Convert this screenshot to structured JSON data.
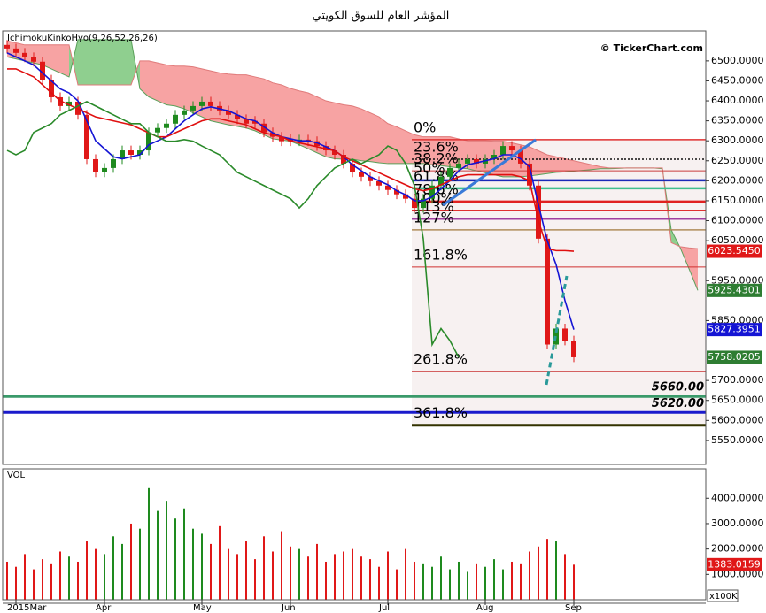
{
  "chart_data": [
    {
      "type": "candlestick",
      "title": "المؤشر العام للسوق الكويتي",
      "indicator": "IchimokuKinkoHyo(9,26,52,26,26)",
      "watermark": "© TickerChart.com",
      "categories": [
        null,
        "2015Mar",
        null,
        null,
        null,
        null,
        null,
        null,
        null,
        null,
        null,
        "Apr",
        null,
        null,
        null,
        null,
        null,
        null,
        null,
        null,
        null,
        null,
        "May",
        null,
        null,
        null,
        null,
        null,
        null,
        null,
        null,
        null,
        "Jun",
        null,
        null,
        null,
        null,
        null,
        null,
        null,
        null,
        null,
        null,
        "Jul",
        null,
        null,
        null,
        null,
        null,
        null,
        null,
        null,
        null,
        null,
        "Aug",
        null,
        null,
        null,
        null,
        null,
        null,
        null,
        null,
        null,
        "Sep",
        null,
        null,
        null,
        null,
        null,
        null,
        null,
        null,
        null,
        null,
        null,
        null,
        null,
        null
      ],
      "open": [
        6540,
        6531,
        6520,
        6509,
        6498,
        6453,
        6409,
        6387,
        6398,
        6365,
        6254,
        6221,
        6232,
        6254,
        6276,
        6265,
        6276,
        6321,
        6332,
        6343,
        6365,
        6376,
        6387,
        6398,
        6387,
        6376,
        6365,
        6354,
        6350,
        6343,
        6321,
        6310,
        6305,
        6299,
        6303,
        6299,
        6287,
        6276,
        6265,
        6243,
        6221,
        6210,
        6199,
        6188,
        6177,
        6166,
        6155,
        6132,
        6155,
        6188,
        6210,
        6232,
        6243,
        6254,
        6243,
        6254,
        6265,
        6287,
        6276,
        6243,
        6188,
        6055,
        5790,
        5830,
        5800,
        null,
        null,
        null,
        null,
        null,
        null,
        null,
        null,
        null,
        null,
        null,
        null,
        null,
        null
      ],
      "high": [
        6552,
        6543,
        6532,
        6521,
        6510,
        6465,
        6421,
        6410,
        6410,
        6377,
        6266,
        6244,
        6266,
        6288,
        6288,
        6288,
        6333,
        6344,
        6355,
        6377,
        6388,
        6399,
        6410,
        6410,
        6399,
        6388,
        6377,
        6366,
        6362,
        6355,
        6333,
        6322,
        6317,
        6315,
        6315,
        6311,
        6299,
        6288,
        6277,
        6255,
        6233,
        6222,
        6211,
        6200,
        6189,
        6178,
        6167,
        6167,
        6200,
        6222,
        6244,
        6255,
        6266,
        6266,
        6266,
        6277,
        6299,
        6299,
        6288,
        6255,
        6200,
        6067,
        5842,
        5842,
        5812,
        null,
        null,
        null,
        null,
        null,
        null,
        null,
        null,
        null,
        null,
        null,
        null,
        null,
        null
      ],
      "low": [
        6519,
        6508,
        6497,
        6486,
        6441,
        6397,
        6375,
        6375,
        6353,
        6242,
        6209,
        6209,
        6220,
        6242,
        6253,
        6253,
        6264,
        6309,
        6320,
        6331,
        6353,
        6364,
        6375,
        6375,
        6364,
        6353,
        6342,
        6331,
        6331,
        6309,
        6298,
        6287,
        6287,
        6287,
        6287,
        6275,
        6264,
        6253,
        6231,
        6209,
        6198,
        6187,
        6176,
        6165,
        6154,
        6143,
        6120,
        6120,
        6143,
        6176,
        6198,
        6220,
        6231,
        6231,
        6231,
        6242,
        6253,
        6264,
        6231,
        6176,
        6043,
        5778,
        5778,
        5788,
        5746,
        null,
        null,
        null,
        null,
        null,
        null,
        null,
        null,
        null,
        null,
        null,
        null,
        null,
        null
      ],
      "close": [
        6531,
        6520,
        6509,
        6498,
        6453,
        6409,
        6387,
        6398,
        6365,
        6254,
        6221,
        6232,
        6254,
        6276,
        6265,
        6276,
        6321,
        6332,
        6343,
        6365,
        6376,
        6387,
        6398,
        6387,
        6376,
        6365,
        6354,
        6343,
        6343,
        6321,
        6310,
        6299,
        6299,
        6303,
        6299,
        6287,
        6276,
        6265,
        6243,
        6221,
        6210,
        6199,
        6188,
        6177,
        6166,
        6155,
        6132,
        6155,
        6188,
        6210,
        6232,
        6243,
        6254,
        6243,
        6254,
        6265,
        6287,
        6276,
        6243,
        6188,
        6055,
        5790,
        5830,
        5800,
        5758.0205,
        null,
        null,
        null,
        null,
        null,
        null,
        null,
        null,
        null,
        null,
        null,
        null,
        null,
        null
      ],
      "close_label": "5758.0205",
      "close_tag_color": "#2e7d32",
      "up_color": "#1e8a1e",
      "down_color": "#e01818",
      "cloud": {
        "span_a": [
          6510,
          6505,
          6500,
          6495,
          6490,
          6480,
          6470,
          6460,
          6553,
          6553,
          6553,
          6553,
          6553,
          6553,
          6553,
          6430,
          6410,
          6400,
          6390,
          6387,
          6380,
          6370,
          6360,
          6350,
          6345,
          6340,
          6336,
          6332,
          6325,
          6315,
          6305,
          6302,
          6299,
          6290,
          6280,
          6270,
          6260,
          6255,
          6254,
          6254,
          6250,
          6248,
          6245,
          6243,
          6243,
          6243,
          6243,
          6243,
          6240,
          6238,
          6235,
          6232,
          6230,
          6225,
          6220,
          6215,
          6210,
          6210,
          6210,
          6212,
          6215,
          6218,
          6221,
          6222,
          6224,
          6226,
          6228,
          6230,
          6230,
          6231,
          6232,
          6232,
          6232,
          6232,
          6230,
          6077,
          6033,
          5980,
          5925.4301
        ],
        "span_b": [
          6550,
          6545,
          6540,
          6540,
          6540,
          6540,
          6540,
          6540,
          6440,
          6440,
          6440,
          6440,
          6440,
          6440,
          6440,
          6500,
          6500,
          6495,
          6490,
          6487,
          6487,
          6485,
          6480,
          6475,
          6470,
          6467,
          6465,
          6465,
          6460,
          6455,
          6445,
          6440,
          6431,
          6425,
          6420,
          6410,
          6400,
          6395,
          6390,
          6387,
          6380,
          6370,
          6360,
          6343,
          6335,
          6325,
          6315,
          6310,
          6310,
          6310,
          6310,
          6305,
          6300,
          6300,
          6300,
          6299,
          6299,
          6295,
          6290,
          6285,
          6275,
          6265,
          6260,
          6255,
          6250,
          6245,
          6240,
          6235,
          6232,
          6232,
          6232,
          6232,
          6232,
          6232,
          6232,
          6045,
          6035,
          6032,
          6030
        ],
        "bullish_color": "#8fcf8f",
        "bearish_color": "#f7a3a3",
        "span_a_color": "#5aa05a",
        "span_b_color": "#e07a7a",
        "span_a_label": "5925.4301",
        "span_a_tag_color": "#2e7d32"
      },
      "lines": [
        {
          "color": "#1414d4",
          "width": 1.6,
          "values": [
            6520,
            6510,
            6500,
            6490,
            6470,
            6450,
            6430,
            6420,
            6400,
            6350,
            6300,
            6280,
            6260,
            6255,
            6260,
            6265,
            6290,
            6300,
            6310,
            6330,
            6350,
            6365,
            6380,
            6385,
            6380,
            6375,
            6365,
            6355,
            6350,
            6335,
            6320,
            6310,
            6305,
            6300,
            6300,
            6295,
            6285,
            6275,
            6260,
            6240,
            6225,
            6210,
            6200,
            6190,
            6175,
            6165,
            6150,
            6150,
            6160,
            6180,
            6200,
            6225,
            6240,
            6245,
            6250,
            6255,
            6265,
            6265,
            6255,
            6235,
            6140,
            6050,
            5990,
            5900,
            5827.3951,
            null,
            null,
            null,
            null,
            null,
            null,
            null,
            null,
            null,
            null,
            null,
            null,
            null,
            null
          ],
          "last_label": "5827.3951",
          "tag_color": "#1414d4"
        },
        {
          "color": "#e01010",
          "width": 1.6,
          "values": [
            6480,
            6480,
            6470,
            6460,
            6440,
            6420,
            6400,
            6390,
            6380,
            6370,
            6360,
            6355,
            6350,
            6345,
            6340,
            6330,
            6320,
            6310,
            6310,
            6320,
            6330,
            6340,
            6350,
            6355,
            6355,
            6350,
            6345,
            6340,
            6330,
            6320,
            6315,
            6310,
            6300,
            6295,
            6290,
            6285,
            6280,
            6275,
            6260,
            6250,
            6240,
            6230,
            6220,
            6210,
            6200,
            6190,
            6180,
            6175,
            6180,
            6190,
            6200,
            6210,
            6215,
            6215,
            6215,
            6215,
            6215,
            6215,
            6210,
            6200,
            6100,
            6030,
            6025,
            6025,
            6023.545,
            null,
            null,
            null,
            null,
            null,
            null,
            null,
            null,
            null,
            null,
            null,
            null,
            null,
            null
          ],
          "last_label": "6023.5450",
          "tag_color": "#e01818"
        },
        {
          "color": "#2a8a2a",
          "width": 1.6,
          "values": [
            6276,
            6265,
            6276,
            6321,
            6332,
            6343,
            6365,
            6376,
            6387,
            6398,
            6387,
            6376,
            6365,
            6354,
            6343,
            6343,
            6321,
            6310,
            6299,
            6299,
            6303,
            6299,
            6287,
            6276,
            6265,
            6243,
            6221,
            6210,
            6199,
            6188,
            6177,
            6166,
            6155,
            6132,
            6155,
            6188,
            6210,
            6232,
            6243,
            6254,
            6243,
            6254,
            6265,
            6287,
            6276,
            6243,
            6188,
            6055,
            5790,
            5830,
            5800,
            5758.0205,
            null,
            null,
            null,
            null,
            null,
            null,
            null,
            null,
            null,
            null,
            null,
            null,
            null,
            null,
            null,
            null,
            null,
            null,
            null,
            null,
            null,
            null,
            null,
            null,
            null,
            null,
            null
          ]
        }
      ],
      "fib_levels": [
        {
          "label": "0%",
          "value": 6303,
          "color": "#e03030",
          "width": 1.5
        },
        {
          "label": "23.6%",
          "value": 6254,
          "color": "#111111",
          "width": 1.5,
          "dash": true
        },
        {
          "label": "38.2%",
          "value": 6225,
          "color": "#c83c3c",
          "width": 1
        },
        {
          "label": "50%",
          "value": 6201,
          "color": "#1a2ab8",
          "width": 2.5
        },
        {
          "label": "61.8%",
          "value": 6181,
          "color": "#3fbf8f",
          "width": 2.5
        },
        {
          "label": "78.6%",
          "value": 6148,
          "color": "#e02020",
          "width": 2.5
        },
        {
          "label": "100%",
          "value": 6126,
          "color": "#e03030",
          "width": 1.5
        },
        {
          "label": "113%",
          "value": 6104,
          "color": "#a040a0",
          "width": 1.5
        },
        {
          "label": "127%",
          "value": 6077,
          "color": "#b08c5a",
          "width": 1.5
        },
        {
          "label": "161.8%",
          "value": 5984,
          "color": "#d03030",
          "width": 1
        },
        {
          "label": "261.8%",
          "value": 5723,
          "color": "#c83030",
          "width": 1
        },
        {
          "label": "361.8%",
          "value": 5588,
          "color": "#333300",
          "width": 3
        }
      ],
      "hlines": [
        {
          "value": 5660,
          "label": "5660.00",
          "color": "#3a9a6a"
        },
        {
          "value": 5620,
          "label": "5620.00",
          "color": "#1a1acc"
        }
      ],
      "ylim": [
        5490,
        6575
      ],
      "yticks": [
        {
          "value": 6500,
          "label": "6500.0000"
        },
        {
          "value": 6450,
          "label": "6450.0000"
        },
        {
          "value": 6400,
          "label": "6400.0000"
        },
        {
          "value": 6350,
          "label": "6350.0000"
        },
        {
          "value": 6300,
          "label": "6300.0000"
        },
        {
          "value": 6250,
          "label": "6250.0000"
        },
        {
          "value": 6200,
          "label": "6200.0000"
        },
        {
          "value": 6150,
          "label": "6150.0000"
        },
        {
          "value": 6100,
          "label": "6100.0000"
        },
        {
          "value": 6050,
          "label": "6050.0000"
        },
        {
          "value": 5950,
          "label": "5950.0000"
        },
        {
          "value": 5850,
          "label": "5850.0000"
        },
        {
          "value": 5700,
          "label": "5700.0000"
        },
        {
          "value": 5650,
          "label": "5650.0000"
        },
        {
          "value": 5600,
          "label": "5600.0000"
        },
        {
          "value": 5550,
          "label": "5550.0000"
        }
      ]
    },
    {
      "type": "bar",
      "title": "VOL",
      "unit": "x100K",
      "values": [
        1500,
        1300,
        1800,
        1200,
        1600,
        1400,
        1900,
        1700,
        1500,
        2300,
        2000,
        1800,
        2500,
        2200,
        3000,
        2800,
        4400,
        3500,
        3900,
        3200,
        3600,
        2800,
        2600,
        2200,
        2900,
        2000,
        1800,
        2300,
        1600,
        2500,
        1900,
        2700,
        2100,
        2000,
        1700,
        2200,
        1500,
        1800,
        1900,
        2000,
        1700,
        1600,
        1300,
        1900,
        1200,
        2000,
        1500,
        1400,
        1300,
        1700,
        1200,
        1500,
        1100,
        1400,
        1300,
        1600,
        1200,
        1500,
        1400,
        1900,
        2100,
        2400,
        2300,
        1800,
        1383.0159
      ],
      "last_label": "1383.0159",
      "tag_color": "#e01818",
      "ylim": [
        0,
        5160
      ],
      "yticks": [
        {
          "value": 1000,
          "label": "1000.0000"
        },
        {
          "value": 2000,
          "label": "2000.0000"
        },
        {
          "value": 3000,
          "label": "3000.0000"
        },
        {
          "value": 4000,
          "label": "4000.0000"
        }
      ]
    }
  ]
}
